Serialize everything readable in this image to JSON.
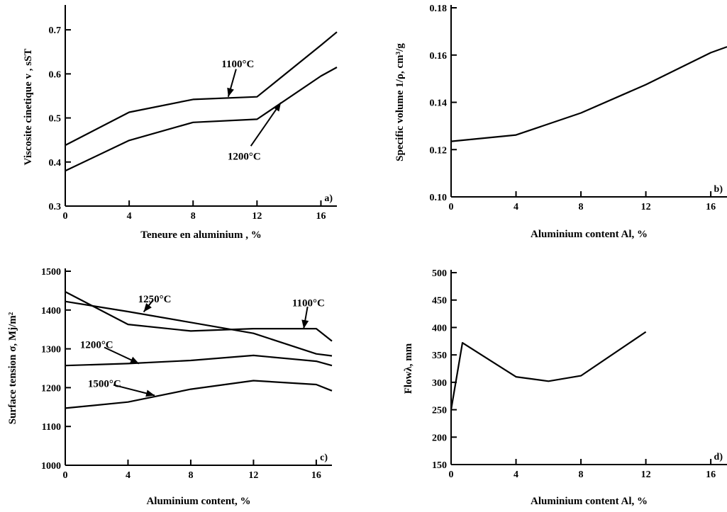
{
  "chart_data": [
    {
      "id": "a",
      "type": "line",
      "panel_label": "a)",
      "xlabel": "Teneure en aluminium   , %",
      "ylabel": "Viscosite cinetique  v , sST",
      "xlim": [
        0,
        17
      ],
      "ylim": [
        0.3,
        0.75
      ],
      "xticks": [
        0,
        4,
        8,
        12,
        16
      ],
      "yticks": [
        0.3,
        0.4,
        0.5,
        0.6,
        0.7
      ],
      "yticklabels": [
        "0.3",
        "0.4",
        "0.5",
        "0.6",
        "0.7"
      ],
      "series": [
        {
          "name": "1100°C",
          "x": [
            0,
            4,
            8,
            12,
            16,
            17
          ],
          "y": [
            0.438,
            0.513,
            0.542,
            0.548,
            0.665,
            0.695
          ]
        },
        {
          "name": "1200°C",
          "x": [
            0,
            4,
            8,
            12,
            16,
            17
          ],
          "y": [
            0.38,
            0.449,
            0.49,
            0.497,
            0.595,
            0.615
          ]
        }
      ],
      "annotations": [
        {
          "text": "1100°C",
          "tx": 10.8,
          "ty": 0.615,
          "ax": 10.2,
          "ay": 0.548
        },
        {
          "text": "1200°C",
          "tx": 11.2,
          "ty": 0.405,
          "ax": 13.5,
          "ay": 0.535
        }
      ]
    },
    {
      "id": "b",
      "type": "line",
      "panel_label": "b)",
      "xlabel": "Aluminium content   Al,   %",
      "ylabel": "Specific volume 1/ρ,  cm³/g",
      "xlim": [
        0,
        17
      ],
      "ylim": [
        0.1,
        0.18
      ],
      "xticks": [
        0,
        4,
        8,
        12,
        16
      ],
      "yticks": [
        0.1,
        0.12,
        0.14,
        0.16,
        0.18
      ],
      "yticklabels": [
        "0.10",
        "0.12",
        "0.14",
        "0.16",
        "0.18"
      ],
      "series": [
        {
          "name": "",
          "x": [
            0,
            4,
            8,
            12,
            16,
            17
          ],
          "y": [
            0.1235,
            0.1262,
            0.1355,
            0.1475,
            0.161,
            0.1635
          ]
        }
      ],
      "annotations": []
    },
    {
      "id": "c",
      "type": "line",
      "panel_label": "c)",
      "xlabel": "Aluminium content,    %",
      "ylabel": "Surface tension  σ,  Mj/m²",
      "xlim": [
        0,
        17
      ],
      "ylim": [
        1000,
        1500
      ],
      "xticks": [
        0,
        4,
        8,
        12,
        16
      ],
      "yticks": [
        1000,
        1100,
        1200,
        1300,
        1400,
        1500
      ],
      "yticklabels": [
        "1000",
        "1100",
        "1200",
        "1300",
        "1400",
        "1500"
      ],
      "series": [
        {
          "name": "1100°C",
          "x": [
            0,
            4,
            8,
            12,
            16,
            17
          ],
          "y": [
            1447,
            1363,
            1346,
            1352,
            1352,
            1320
          ]
        },
        {
          "name": "1250°C",
          "x": [
            0,
            4,
            8,
            12,
            16,
            17
          ],
          "y": [
            1422,
            1396,
            1368,
            1340,
            1287,
            1282
          ]
        },
        {
          "name": "1200°C",
          "x": [
            0,
            4,
            8,
            12,
            16,
            17
          ],
          "y": [
            1257,
            1262,
            1270,
            1283,
            1268,
            1257
          ]
        },
        {
          "name": "1500°C",
          "x": [
            0,
            4,
            8,
            12,
            16,
            17
          ],
          "y": [
            1147,
            1163,
            1196,
            1218,
            1208,
            1192
          ]
        }
      ],
      "annotations": [
        {
          "text": "1250°C",
          "tx": 5.7,
          "ty": 1420,
          "ax": 5.0,
          "ay": 1395
        },
        {
          "text": "1100°C",
          "tx": 15.5,
          "ty": 1410,
          "ax": 15.2,
          "ay": 1352
        },
        {
          "text": "1200°C",
          "tx": 2.0,
          "ty": 1302,
          "ax": 4.7,
          "ay": 1262
        },
        {
          "text": "1500°C",
          "tx": 2.5,
          "ty": 1202,
          "ax": 5.7,
          "ay": 1180
        }
      ]
    },
    {
      "id": "d",
      "type": "line",
      "panel_label": "d)",
      "xlabel": "Aluminium content Al,   %",
      "ylabel": "Flowλ,  mm",
      "xlim": [
        0,
        17
      ],
      "ylim": [
        150,
        500
      ],
      "xticks": [
        0,
        4,
        8,
        12,
        16
      ],
      "yticks": [
        150,
        200,
        250,
        300,
        350,
        400,
        450,
        500
      ],
      "yticklabels": [
        "150",
        "200",
        "250",
        "300",
        "350",
        "400",
        "450",
        "500"
      ],
      "series": [
        {
          "name": "",
          "x": [
            0,
            0.7,
            4,
            6,
            8,
            12
          ],
          "y": [
            250,
            372,
            310,
            302,
            312,
            392
          ]
        }
      ],
      "annotations": []
    }
  ]
}
